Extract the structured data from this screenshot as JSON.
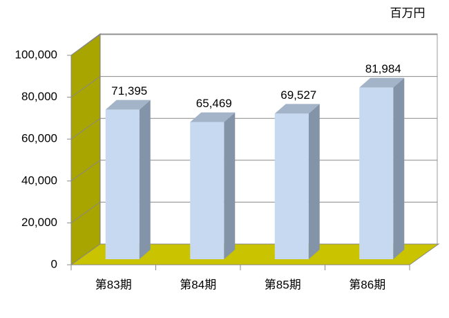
{
  "chart_data": {
    "type": "bar3d",
    "unit_label": "百万円",
    "categories": [
      "第83期",
      "第84期",
      "第85期",
      "第86期"
    ],
    "values": [
      71395,
      65469,
      69527,
      81984
    ],
    "value_labels": [
      "71,395",
      "65,469",
      "69,527",
      "81,984"
    ],
    "color": "#c6d9f1",
    "ylim": [
      0,
      100000
    ],
    "yticks": [
      0,
      {
        "value": 20000,
        "label": "20,000"
      },
      {
        "value": 40000,
        "label": "40,000"
      },
      {
        "value": 60000,
        "label": "60,000"
      },
      {
        "value": 80000,
        "label": "80,000"
      },
      {
        "value": 100000,
        "label": "100,000"
      }
    ],
    "grid": true
  }
}
